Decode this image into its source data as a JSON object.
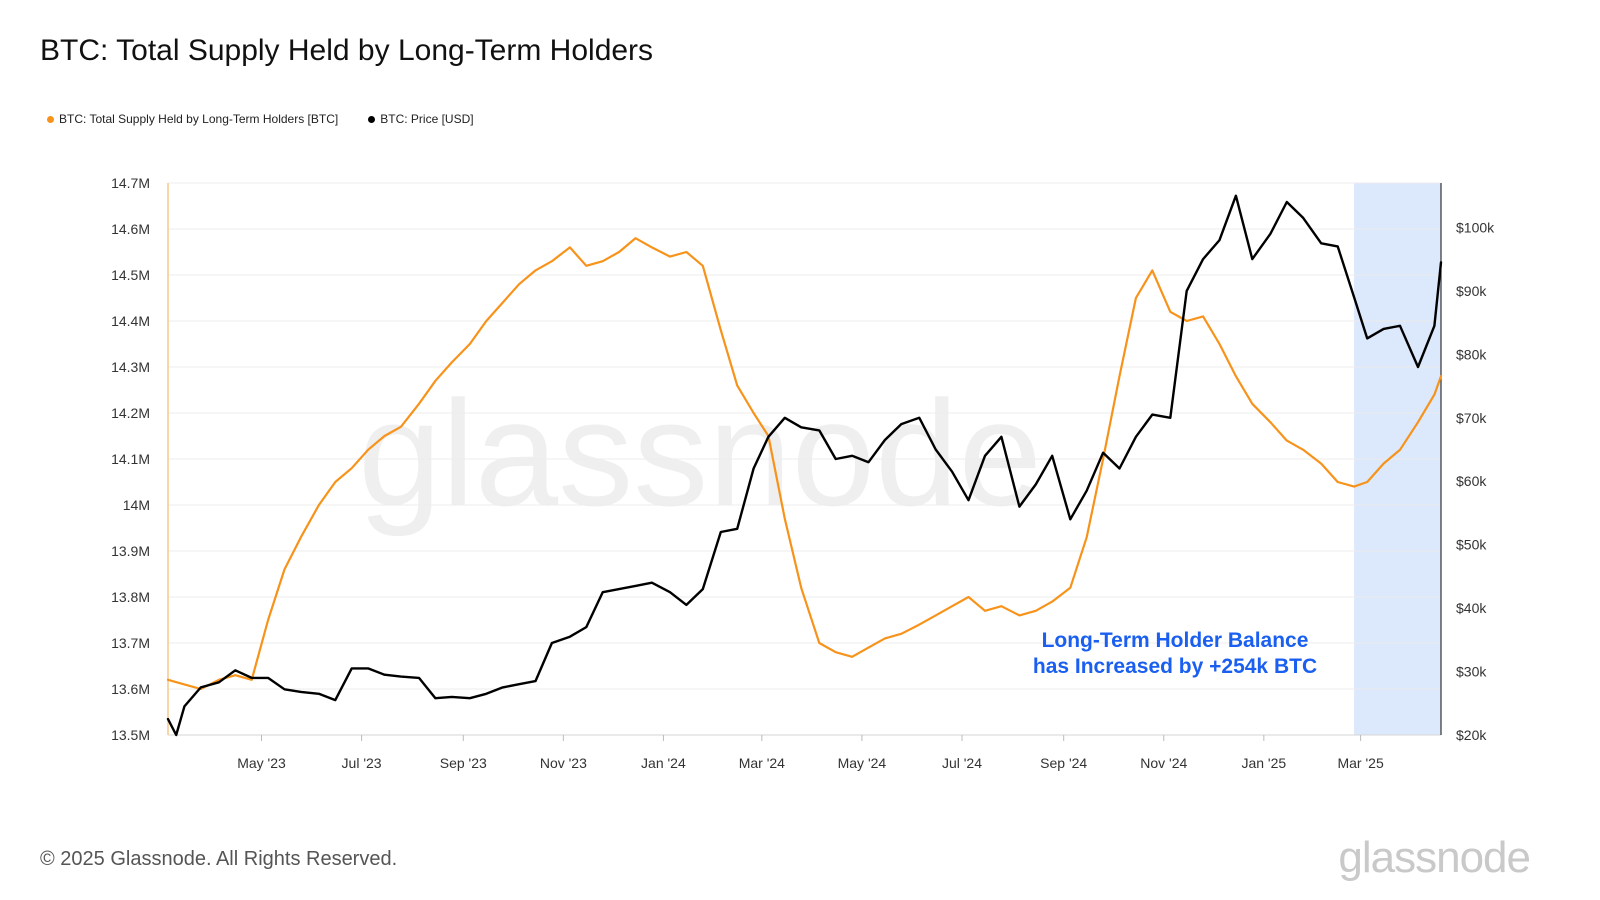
{
  "header": {
    "title": "BTC: Total Supply Held by Long-Term Holders"
  },
  "legend": [
    {
      "label": "BTC: Total Supply Held by Long-Term Holders [BTC]",
      "color": "#f7931a"
    },
    {
      "label": "BTC: Price [USD]",
      "color": "#000000"
    }
  ],
  "footer": {
    "copyright": "© 2025 Glassnode. All Rights Reserved.",
    "logo": "glassnode"
  },
  "watermark": "glassnode",
  "chart_data": {
    "type": "line",
    "title": "BTC: Total Supply Held by Long-Term Holders",
    "x_tick_labels": [
      "May '23",
      "Jul '23",
      "Sep '23",
      "Nov '23",
      "Jan '24",
      "Mar '24",
      "May '24",
      "Jul '24",
      "Sep '24",
      "Nov '24",
      "Jan '25",
      "Mar '25"
    ],
    "x_range": [
      "2023-03-05",
      "2025-04-19"
    ],
    "y_left": {
      "ticks": [
        "13.5M",
        "13.6M",
        "13.7M",
        "13.8M",
        "13.9M",
        "14M",
        "14.1M",
        "14.2M",
        "14.3M",
        "14.4M",
        "14.5M",
        "14.6M",
        "14.7M"
      ],
      "range": [
        13.5,
        14.7
      ],
      "unit": "M BTC"
    },
    "y_right": {
      "ticks": [
        "$20k",
        "$30k",
        "$40k",
        "$50k",
        "$60k",
        "$70k",
        "$80k",
        "$90k",
        "$100k"
      ],
      "range": [
        20,
        107
      ],
      "unit": "k USD",
      "log_scale": false
    },
    "grid": "horizontal",
    "legend_position": "top-left",
    "highlight_region": {
      "start": "2025-02-25",
      "end": "2025-04-19",
      "color": "#dce8fb"
    },
    "annotation": {
      "lines": [
        "Long-Term Holder Balance",
        "has Increased by +254k BTC"
      ],
      "color": "#1a5ff0"
    },
    "series": [
      {
        "name": "BTC: Total Supply Held by Long-Term Holders [BTC]",
        "axis": "left",
        "color": "#f7931a",
        "unit": "M BTC",
        "x": [
          "2023-03-05",
          "2023-03-15",
          "2023-03-25",
          "2023-04-05",
          "2023-04-15",
          "2023-04-25",
          "2023-05-05",
          "2023-05-15",
          "2023-05-25",
          "2023-06-05",
          "2023-06-15",
          "2023-06-25",
          "2023-07-05",
          "2023-07-15",
          "2023-07-25",
          "2023-08-05",
          "2023-08-15",
          "2023-08-25",
          "2023-09-05",
          "2023-09-15",
          "2023-09-25",
          "2023-10-05",
          "2023-10-15",
          "2023-10-25",
          "2023-11-05",
          "2023-11-15",
          "2023-11-25",
          "2023-12-05",
          "2023-12-15",
          "2023-12-25",
          "2024-01-05",
          "2024-01-15",
          "2024-01-25",
          "2024-02-05",
          "2024-02-15",
          "2024-02-25",
          "2024-03-05",
          "2024-03-15",
          "2024-03-25",
          "2024-04-05",
          "2024-04-15",
          "2024-04-25",
          "2024-05-05",
          "2024-05-15",
          "2024-05-25",
          "2024-06-05",
          "2024-06-15",
          "2024-06-25",
          "2024-07-05",
          "2024-07-15",
          "2024-07-25",
          "2024-08-05",
          "2024-08-15",
          "2024-08-25",
          "2024-09-05",
          "2024-09-15",
          "2024-09-25",
          "2024-10-05",
          "2024-10-15",
          "2024-10-25",
          "2024-11-05",
          "2024-11-15",
          "2024-11-25",
          "2024-12-05",
          "2024-12-15",
          "2024-12-25",
          "2025-01-05",
          "2025-01-15",
          "2025-01-25",
          "2025-02-05",
          "2025-02-15",
          "2025-02-25",
          "2025-03-05",
          "2025-03-15",
          "2025-03-25",
          "2025-04-05",
          "2025-04-15",
          "2025-04-19"
        ],
        "values": [
          13.62,
          13.61,
          13.6,
          13.62,
          13.63,
          13.62,
          13.75,
          13.86,
          13.93,
          14.0,
          14.05,
          14.08,
          14.12,
          14.15,
          14.17,
          14.22,
          14.27,
          14.31,
          14.35,
          14.4,
          14.44,
          14.48,
          14.51,
          14.53,
          14.56,
          14.52,
          14.53,
          14.55,
          14.58,
          14.56,
          14.54,
          14.55,
          14.52,
          14.38,
          14.26,
          14.2,
          14.15,
          13.97,
          13.82,
          13.7,
          13.68,
          13.67,
          13.69,
          13.71,
          13.72,
          13.74,
          13.76,
          13.78,
          13.8,
          13.77,
          13.78,
          13.76,
          13.77,
          13.79,
          13.82,
          13.93,
          14.1,
          14.28,
          14.45,
          14.51,
          14.42,
          14.4,
          14.41,
          14.35,
          14.28,
          14.22,
          14.18,
          14.14,
          14.12,
          14.09,
          14.05,
          14.04,
          14.05,
          14.09,
          14.12,
          14.18,
          14.24,
          14.28
        ]
      },
      {
        "name": "BTC: Price [USD]",
        "axis": "right",
        "color": "#000000",
        "unit": "k USD",
        "x": [
          "2023-03-05",
          "2023-03-10",
          "2023-03-15",
          "2023-03-25",
          "2023-04-05",
          "2023-04-15",
          "2023-04-25",
          "2023-05-05",
          "2023-05-15",
          "2023-05-25",
          "2023-06-05",
          "2023-06-15",
          "2023-06-25",
          "2023-07-05",
          "2023-07-15",
          "2023-07-25",
          "2023-08-05",
          "2023-08-15",
          "2023-08-25",
          "2023-09-05",
          "2023-09-15",
          "2023-09-25",
          "2023-10-05",
          "2023-10-15",
          "2023-10-25",
          "2023-11-05",
          "2023-11-15",
          "2023-11-25",
          "2023-12-05",
          "2023-12-15",
          "2023-12-25",
          "2024-01-05",
          "2024-01-15",
          "2024-01-25",
          "2024-02-05",
          "2024-02-15",
          "2024-02-25",
          "2024-03-05",
          "2024-03-15",
          "2024-03-25",
          "2024-04-05",
          "2024-04-15",
          "2024-04-25",
          "2024-05-05",
          "2024-05-15",
          "2024-05-25",
          "2024-06-05",
          "2024-06-15",
          "2024-06-25",
          "2024-07-05",
          "2024-07-15",
          "2024-07-25",
          "2024-08-05",
          "2024-08-15",
          "2024-08-25",
          "2024-09-05",
          "2024-09-15",
          "2024-09-25",
          "2024-10-05",
          "2024-10-15",
          "2024-10-25",
          "2024-11-05",
          "2024-11-15",
          "2024-11-25",
          "2024-12-05",
          "2024-12-15",
          "2024-12-25",
          "2025-01-05",
          "2025-01-15",
          "2025-01-25",
          "2025-02-05",
          "2025-02-15",
          "2025-02-25",
          "2025-03-05",
          "2025-03-15",
          "2025-03-25",
          "2025-04-05",
          "2025-04-15",
          "2025-04-19"
        ],
        "values": [
          22.5,
          20.0,
          24.5,
          27.5,
          28.3,
          30.2,
          29.0,
          29.0,
          27.2,
          26.8,
          26.5,
          25.5,
          30.5,
          30.5,
          29.5,
          29.2,
          29.0,
          25.8,
          26.0,
          25.8,
          26.5,
          27.5,
          28.0,
          28.5,
          34.5,
          35.5,
          37.0,
          42.5,
          43.0,
          43.5,
          44.0,
          42.5,
          40.5,
          43.0,
          52.0,
          52.5,
          62.0,
          67.0,
          70.0,
          68.5,
          68.0,
          63.5,
          64.0,
          63.0,
          66.5,
          69.0,
          70.0,
          65.0,
          61.5,
          57.0,
          64.0,
          67.0,
          56.0,
          59.5,
          64.0,
          54.0,
          58.5,
          64.5,
          62.0,
          67.0,
          70.5,
          70.0,
          90.0,
          95.0,
          98.0,
          105.0,
          95.0,
          99.0,
          104.0,
          101.5,
          97.5,
          97.0,
          89.0,
          82.5,
          84.0,
          84.5,
          78.0,
          84.5,
          94.5
        ]
      }
    ]
  }
}
